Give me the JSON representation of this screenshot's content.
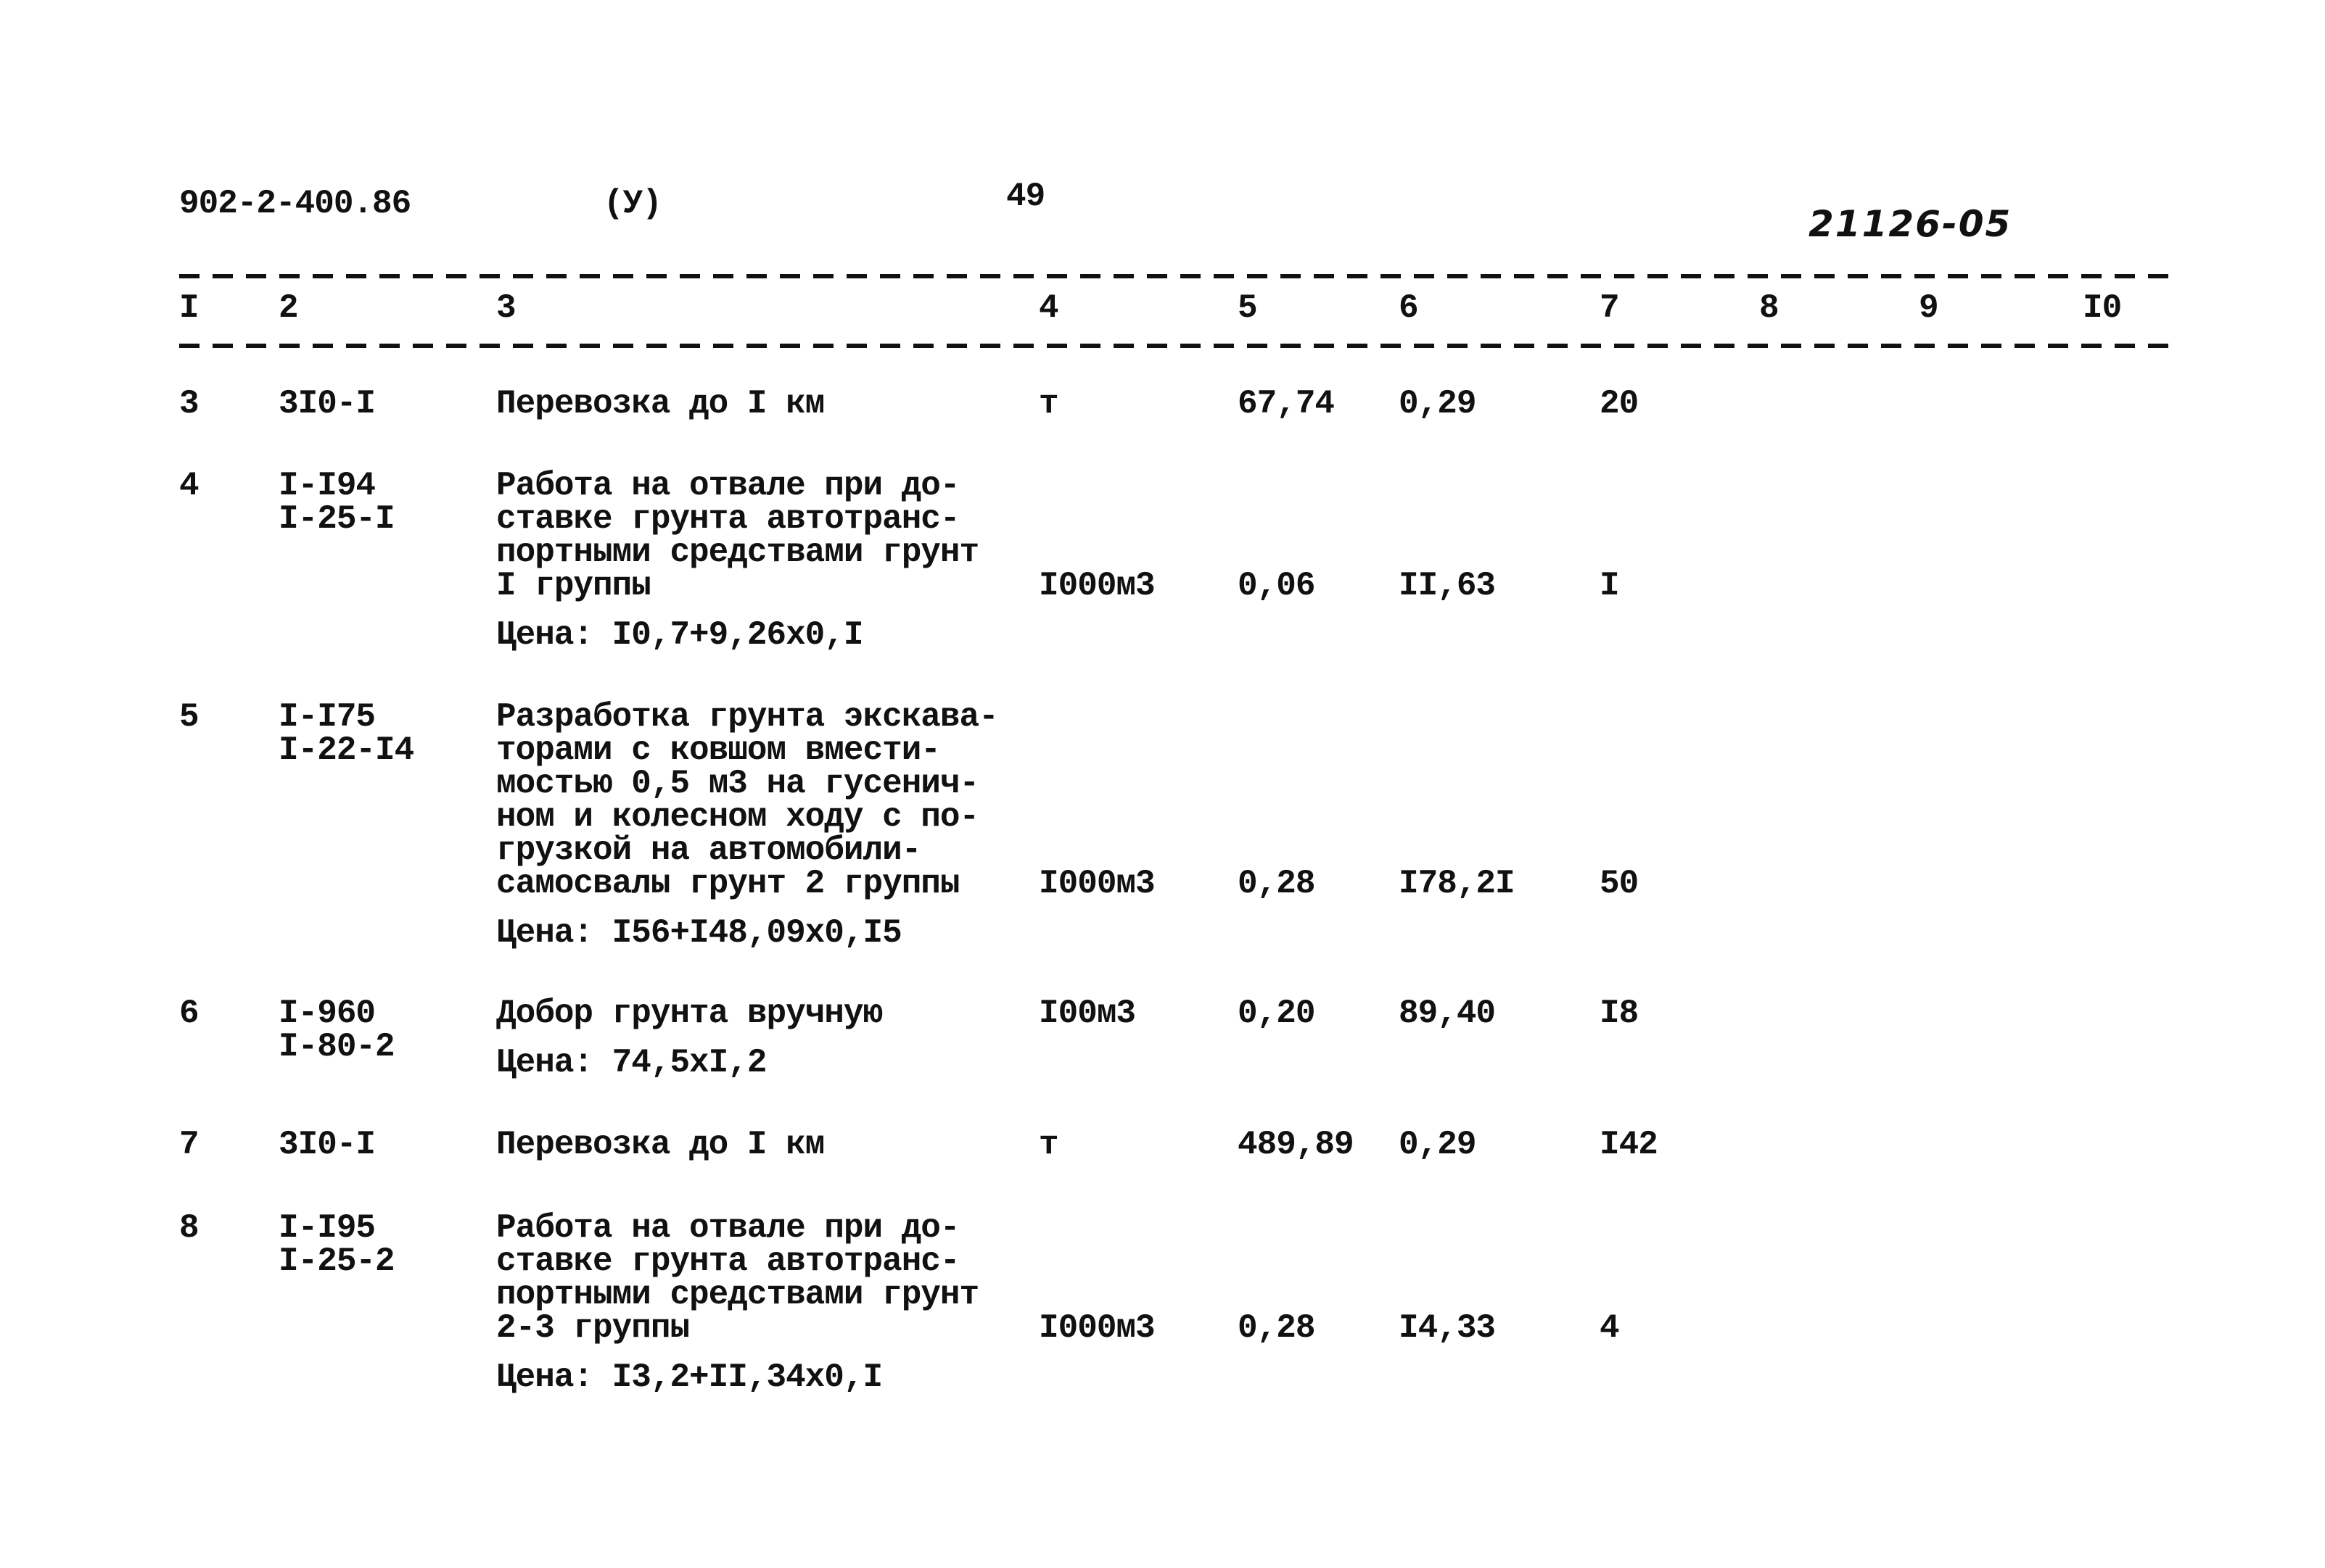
{
  "header": {
    "doc_code": "902-2-400.86",
    "mark": "(У)",
    "page_number": "49",
    "archive_number": "21126-05"
  },
  "columns": [
    "I",
    "2",
    "3",
    "4",
    "5",
    "6",
    "7",
    "8",
    "9",
    "I0"
  ],
  "rows": [
    {
      "num": "3",
      "codes": [
        "3I0-I"
      ],
      "desc": [
        "Перевозка до I км"
      ],
      "price": "",
      "unit": "т",
      "qty": "67,74",
      "rate": "0,29",
      "total": "20"
    },
    {
      "num": "4",
      "codes": [
        "I-I94",
        "I-25-I"
      ],
      "desc": [
        "Работа на отвале при до-",
        "ставке грунта автотранс-",
        "портными средствами грунт",
        "I группы"
      ],
      "price": "Цена: I0,7+9,26х0,I",
      "unit": "I000м3",
      "qty": "0,06",
      "rate": "II,63",
      "total": "I"
    },
    {
      "num": "5",
      "codes": [
        "I-I75",
        "I-22-I4"
      ],
      "desc": [
        "Разработка грунта экскава-",
        "торами с ковшом вмести-",
        "мостью 0,5 м3 на гусенич-",
        "ном и колесном ходу с по-",
        "грузкой на автомобили-",
        "самосвалы грунт 2 группы"
      ],
      "price": "Цена: I56+I48,09х0,I5",
      "unit": "I000м3",
      "qty": "0,28",
      "rate": "I78,2I",
      "total": "50"
    },
    {
      "num": "6",
      "codes": [
        "I-960",
        "I-80-2"
      ],
      "desc": [
        "Добор грунта вручную"
      ],
      "price": "Цена: 74,5хI,2",
      "unit": "I00м3",
      "qty": "0,20",
      "rate": "89,40",
      "total": "I8"
    },
    {
      "num": "7",
      "codes": [
        "3I0-I"
      ],
      "desc": [
        "Перевозка до I км"
      ],
      "price": "",
      "unit": "т",
      "qty": "489,89",
      "rate": "0,29",
      "total": "I42"
    },
    {
      "num": "8",
      "codes": [
        "I-I95",
        "I-25-2"
      ],
      "desc": [
        "Работа на отвале при до-",
        "ставке грунта автотранс-",
        "портными средствами грунт",
        "2-3 группы"
      ],
      "price": "Цена: I3,2+II,34х0,I",
      "unit": "I000м3",
      "qty": "0,28",
      "rate": "I4,33",
      "total": "4"
    }
  ]
}
